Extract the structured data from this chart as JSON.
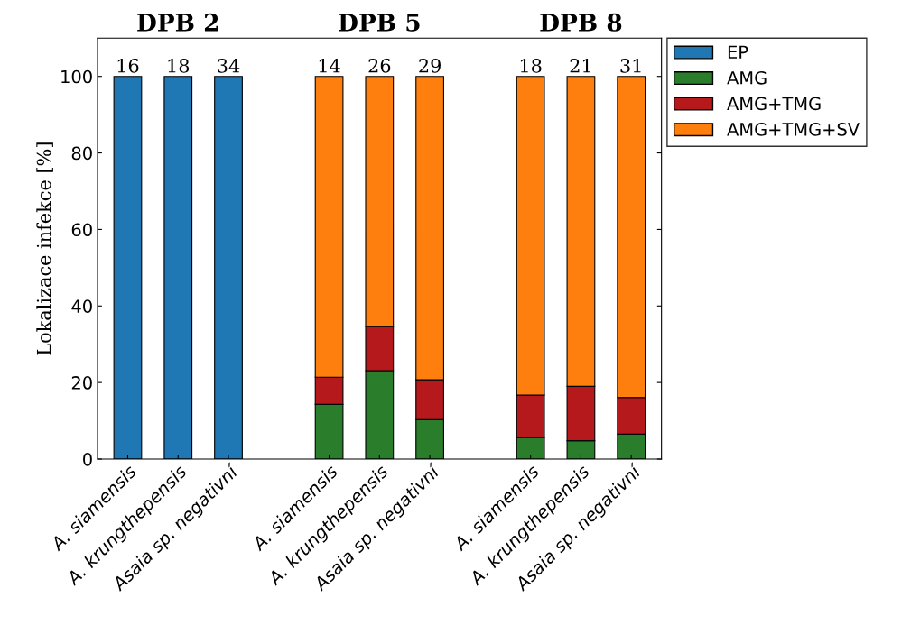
{
  "chart_data": {
    "type": "bar",
    "stacked": true,
    "ylabel": "Lokalizace infekce [%]",
    "categories": [
      "A. siamensis",
      "A. krungthepensis",
      "Asaia sp. negativní",
      null,
      "A. siamensis",
      "A. krungthepensis",
      "Asaia sp. negativní",
      null,
      "A. siamensis",
      "A. krungthepensis",
      "Asaia sp. negativní"
    ],
    "series": [
      {
        "name": "EP",
        "color": "#1f77b4",
        "values": [
          100,
          100,
          100,
          null,
          null,
          null,
          null,
          null,
          null,
          null,
          null
        ]
      },
      {
        "name": "AMG",
        "color": "#2a7d2a",
        "values": [
          null,
          null,
          null,
          null,
          14.3,
          23.1,
          10.3,
          null,
          5.6,
          4.8,
          6.5
        ]
      },
      {
        "name": "AMG+TMG",
        "color": "#b5191b",
        "values": [
          null,
          null,
          null,
          null,
          7.1,
          11.5,
          10.4,
          null,
          11.1,
          14.2,
          9.6
        ]
      },
      {
        "name": "AMG+TMG+SV",
        "color": "#ff7f0e",
        "values": [
          null,
          null,
          null,
          null,
          78.6,
          65.4,
          79.3,
          null,
          83.3,
          81.0,
          83.9
        ]
      }
    ],
    "annotations": [
      "DPB 2",
      "DPB 5",
      "DPB 8",
      "16",
      "18",
      "34",
      "14",
      "26",
      "29",
      "18",
      "21",
      "31"
    ],
    "ylim": [
      0,
      110
    ],
    "yticks": [
      0,
      20,
      40,
      60,
      80,
      100
    ],
    "legend": "top right",
    "grid": false
  }
}
